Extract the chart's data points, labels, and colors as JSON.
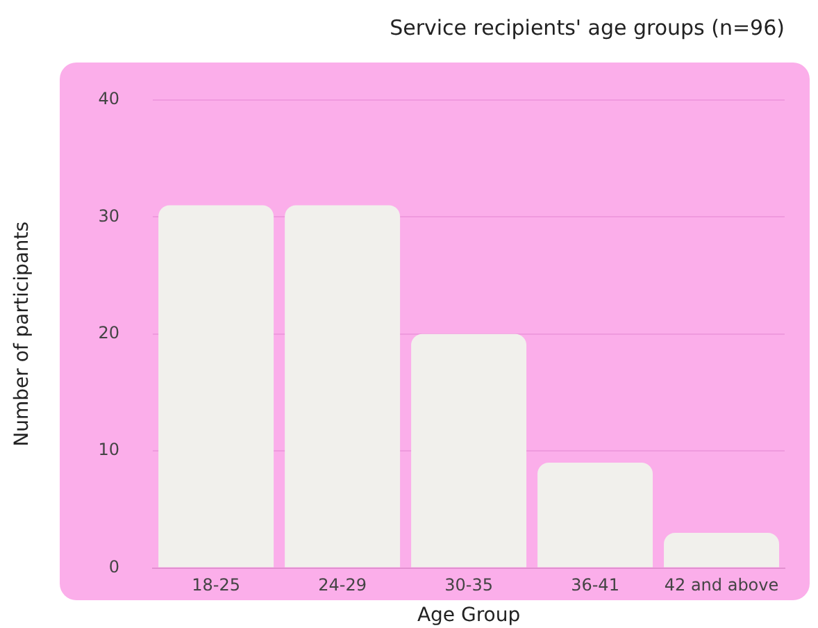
{
  "chart_data": {
    "type": "bar",
    "title": "Service recipients' age groups (n=96)",
    "xlabel": "Age Group",
    "ylabel": "Number of participants",
    "categories": [
      "18-25",
      "24-29",
      "30-35",
      "36-41",
      "42 and above"
    ],
    "values": [
      31,
      31,
      20,
      9,
      3
    ],
    "color": "#f1f0ec",
    "ylim": [
      0,
      40
    ],
    "yticks": [
      0,
      10,
      20,
      30,
      40
    ],
    "grid": "y",
    "legend": false
  }
}
